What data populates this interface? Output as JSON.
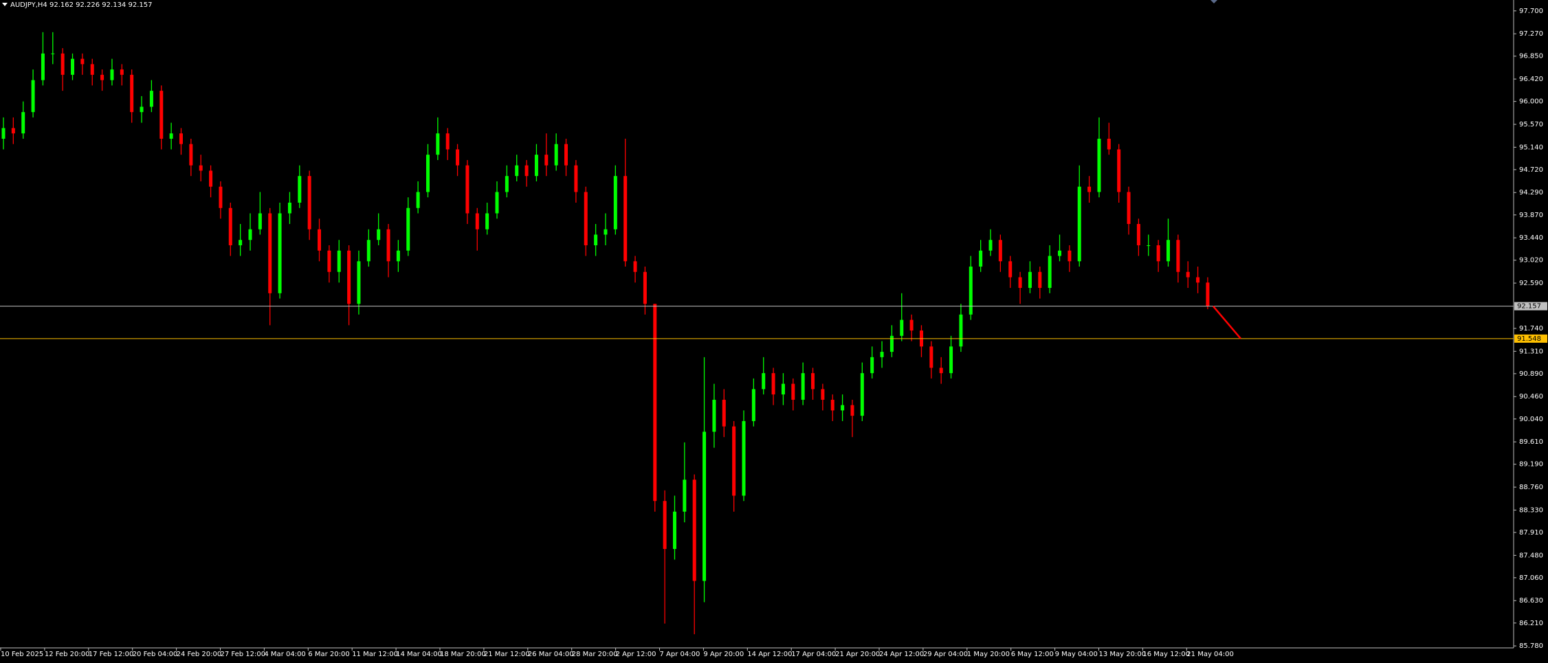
{
  "chart_data": {
    "type": "candlestick",
    "title": "AUDJPY,H4  92.162 92.226 92.134 92.157",
    "up_color": "#00ff00",
    "down_color": "#ff0000",
    "ylim": [
      85.743,
      97.904
    ],
    "yticks": [
      {
        "value": 97.7,
        "label": "97.700"
      },
      {
        "value": 97.27,
        "label": "97.270"
      },
      {
        "value": 96.85,
        "label": "96.850"
      },
      {
        "value": 96.42,
        "label": "96.420"
      },
      {
        "value": 96.0,
        "label": "96.000"
      },
      {
        "value": 95.57,
        "label": "95.570"
      },
      {
        "value": 95.14,
        "label": "95.140"
      },
      {
        "value": 94.72,
        "label": "94.720"
      },
      {
        "value": 94.29,
        "label": "94.290"
      },
      {
        "value": 93.87,
        "label": "93.870"
      },
      {
        "value": 93.44,
        "label": "93.440"
      },
      {
        "value": 93.02,
        "label": "93.020"
      },
      {
        "value": 92.59,
        "label": "92.590"
      },
      {
        "value": 91.74,
        "label": "91.740"
      },
      {
        "value": 91.31,
        "label": "91.310"
      },
      {
        "value": 90.89,
        "label": "90.890"
      },
      {
        "value": 90.46,
        "label": "90.460"
      },
      {
        "value": 90.04,
        "label": "90.040"
      },
      {
        "value": 89.61,
        "label": "89.610"
      },
      {
        "value": 89.19,
        "label": "89.190"
      },
      {
        "value": 88.76,
        "label": "88.760"
      },
      {
        "value": 88.33,
        "label": "88.330"
      },
      {
        "value": 87.91,
        "label": "87.910"
      },
      {
        "value": 87.48,
        "label": "87.480"
      },
      {
        "value": 87.06,
        "label": "87.060"
      },
      {
        "value": 86.63,
        "label": "86.630"
      },
      {
        "value": 86.21,
        "label": "86.210"
      },
      {
        "value": 85.78,
        "label": "85.780"
      }
    ],
    "hlines": [
      {
        "value": 92.157,
        "color": "#c0c0c0"
      },
      {
        "value": 91.548,
        "color": "#ffc000"
      }
    ],
    "categories": [
      "10 Feb 2025",
      "12 Feb 20:00",
      "17 Feb 12:00",
      "20 Feb 04:00",
      "24 Feb 20:00",
      "27 Feb 12:00",
      "4 Mar 04:00",
      "6 Mar 20:00",
      "11 Mar 12:00",
      "14 Mar 04:00",
      "18 Mar 20:00",
      "21 Mar 12:00",
      "26 Mar 04:00",
      "28 Mar 20:00",
      "2 Apr 12:00",
      "7 Apr 04:00",
      "9 Apr 20:00",
      "14 Apr 12:00",
      "17 Apr 04:00",
      "21 Apr 20:00",
      "24 Apr 12:00",
      "29 Apr 04:00",
      "1 May 20:00",
      "6 May 12:00",
      "9 May 04:00",
      "13 May 20:00",
      "16 May 12:00",
      "21 May 04:00"
    ],
    "candles": [
      [
        95.3,
        95.7,
        95.1,
        95.5
      ],
      [
        95.5,
        95.7,
        95.2,
        95.4
      ],
      [
        95.4,
        96.0,
        95.3,
        95.8
      ],
      [
        95.8,
        96.6,
        95.7,
        96.4
      ],
      [
        96.4,
        97.3,
        96.3,
        96.9
      ],
      [
        96.9,
        97.3,
        96.7,
        96.9
      ],
      [
        96.9,
        97.0,
        96.2,
        96.5
      ],
      [
        96.5,
        96.9,
        96.4,
        96.8
      ],
      [
        96.8,
        96.9,
        96.5,
        96.7
      ],
      [
        96.7,
        96.8,
        96.3,
        96.5
      ],
      [
        96.5,
        96.6,
        96.2,
        96.4
      ],
      [
        96.4,
        96.8,
        96.3,
        96.6
      ],
      [
        96.6,
        96.7,
        96.3,
        96.5
      ],
      [
        96.5,
        96.6,
        95.6,
        95.8
      ],
      [
        95.8,
        96.1,
        95.6,
        95.9
      ],
      [
        95.9,
        96.4,
        95.8,
        96.2
      ],
      [
        96.2,
        96.3,
        95.1,
        95.3
      ],
      [
        95.3,
        95.6,
        95.1,
        95.4
      ],
      [
        95.4,
        95.5,
        95.0,
        95.2
      ],
      [
        95.2,
        95.3,
        94.6,
        94.8
      ],
      [
        94.8,
        95.0,
        94.5,
        94.7
      ],
      [
        94.7,
        94.8,
        94.2,
        94.4
      ],
      [
        94.4,
        94.5,
        93.8,
        94.0
      ],
      [
        94.0,
        94.1,
        93.1,
        93.3
      ],
      [
        93.3,
        93.7,
        93.1,
        93.4
      ],
      [
        93.4,
        93.9,
        93.2,
        93.6
      ],
      [
        93.6,
        94.3,
        93.5,
        93.9
      ],
      [
        93.9,
        94.0,
        91.8,
        92.4
      ],
      [
        92.4,
        94.1,
        92.3,
        93.9
      ],
      [
        93.9,
        94.3,
        93.7,
        94.1
      ],
      [
        94.1,
        94.8,
        94.0,
        94.6
      ],
      [
        94.6,
        94.7,
        93.4,
        93.6
      ],
      [
        93.6,
        93.8,
        93.0,
        93.2
      ],
      [
        93.2,
        93.3,
        92.6,
        92.8
      ],
      [
        92.8,
        93.4,
        92.6,
        93.2
      ],
      [
        93.2,
        93.3,
        91.8,
        92.2
      ],
      [
        92.2,
        93.2,
        92.0,
        93.0
      ],
      [
        93.0,
        93.6,
        92.9,
        93.4
      ],
      [
        93.4,
        93.9,
        93.3,
        93.6
      ],
      [
        93.6,
        93.7,
        92.7,
        93.0
      ],
      [
        93.0,
        93.4,
        92.8,
        93.2
      ],
      [
        93.2,
        94.2,
        93.1,
        94.0
      ],
      [
        94.0,
        94.5,
        93.9,
        94.3
      ],
      [
        94.3,
        95.2,
        94.2,
        95.0
      ],
      [
        95.0,
        95.7,
        94.9,
        95.4
      ],
      [
        95.4,
        95.5,
        94.9,
        95.1
      ],
      [
        95.1,
        95.2,
        94.6,
        94.8
      ],
      [
        94.8,
        94.9,
        93.7,
        93.9
      ],
      [
        93.9,
        94.0,
        93.2,
        93.6
      ],
      [
        93.6,
        94.1,
        93.5,
        93.9
      ],
      [
        93.9,
        94.5,
        93.8,
        94.3
      ],
      [
        94.3,
        94.8,
        94.2,
        94.6
      ],
      [
        94.6,
        95.0,
        94.5,
        94.8
      ],
      [
        94.8,
        94.9,
        94.4,
        94.6
      ],
      [
        94.6,
        95.2,
        94.5,
        95.0
      ],
      [
        95.0,
        95.4,
        94.6,
        94.8
      ],
      [
        94.8,
        95.4,
        94.7,
        95.2
      ],
      [
        95.2,
        95.3,
        94.6,
        94.8
      ],
      [
        94.8,
        94.9,
        94.1,
        94.3
      ],
      [
        94.3,
        94.4,
        93.1,
        93.3
      ],
      [
        93.3,
        93.7,
        93.1,
        93.5
      ],
      [
        93.5,
        93.9,
        93.3,
        93.6
      ],
      [
        93.6,
        94.8,
        93.5,
        94.6
      ],
      [
        94.6,
        95.3,
        92.9,
        93.0
      ],
      [
        93.0,
        93.1,
        92.6,
        92.8
      ],
      [
        92.8,
        92.9,
        92.0,
        92.2
      ],
      [
        92.2,
        92.2,
        88.3,
        88.5
      ],
      [
        88.5,
        88.7,
        86.2,
        87.6
      ],
      [
        87.6,
        88.6,
        87.4,
        88.3
      ],
      [
        88.3,
        89.6,
        88.1,
        88.9
      ],
      [
        88.9,
        89.0,
        86.0,
        87.0
      ],
      [
        87.0,
        91.2,
        86.6,
        89.8
      ],
      [
        89.8,
        90.7,
        89.5,
        90.4
      ],
      [
        90.4,
        90.6,
        89.7,
        89.9
      ],
      [
        89.9,
        90.0,
        88.3,
        88.6
      ],
      [
        88.6,
        90.2,
        88.5,
        90.0
      ],
      [
        90.0,
        90.8,
        89.9,
        90.6
      ],
      [
        90.6,
        91.2,
        90.5,
        90.9
      ],
      [
        90.9,
        91.0,
        90.3,
        90.5
      ],
      [
        90.5,
        90.9,
        90.3,
        90.7
      ],
      [
        90.7,
        90.8,
        90.2,
        90.4
      ],
      [
        90.4,
        91.1,
        90.3,
        90.9
      ],
      [
        90.9,
        91.0,
        90.4,
        90.6
      ],
      [
        90.6,
        90.7,
        90.2,
        90.4
      ],
      [
        90.4,
        90.5,
        90.0,
        90.2
      ],
      [
        90.2,
        90.5,
        90.0,
        90.3
      ],
      [
        90.3,
        90.4,
        89.7,
        90.1
      ],
      [
        90.1,
        91.1,
        90.0,
        90.9
      ],
      [
        90.9,
        91.4,
        90.8,
        91.2
      ],
      [
        91.2,
        91.5,
        91.0,
        91.3
      ],
      [
        91.3,
        91.8,
        91.2,
        91.6
      ],
      [
        91.6,
        92.4,
        91.5,
        91.9
      ],
      [
        91.9,
        92.0,
        91.5,
        91.7
      ],
      [
        91.7,
        91.8,
        91.2,
        91.4
      ],
      [
        91.4,
        91.5,
        90.8,
        91.0
      ],
      [
        91.0,
        91.2,
        90.7,
        90.9
      ],
      [
        90.9,
        91.6,
        90.8,
        91.4
      ],
      [
        91.4,
        92.2,
        91.3,
        92.0
      ],
      [
        92.0,
        93.1,
        91.9,
        92.9
      ],
      [
        92.9,
        93.4,
        92.8,
        93.2
      ],
      [
        93.2,
        93.6,
        93.1,
        93.4
      ],
      [
        93.4,
        93.5,
        92.8,
        93.0
      ],
      [
        93.0,
        93.1,
        92.5,
        92.7
      ],
      [
        92.7,
        92.8,
        92.2,
        92.5
      ],
      [
        92.5,
        93.0,
        92.4,
        92.8
      ],
      [
        92.8,
        92.9,
        92.3,
        92.5
      ],
      [
        92.5,
        93.3,
        92.4,
        93.1
      ],
      [
        93.1,
        93.5,
        93.0,
        93.2
      ],
      [
        93.2,
        93.3,
        92.8,
        93.0
      ],
      [
        93.0,
        94.8,
        92.9,
        94.4
      ],
      [
        94.4,
        94.6,
        94.1,
        94.3
      ],
      [
        94.3,
        95.7,
        94.2,
        95.3
      ],
      [
        95.3,
        95.6,
        95.0,
        95.1
      ],
      [
        95.1,
        95.2,
        94.1,
        94.3
      ],
      [
        94.3,
        94.4,
        93.5,
        93.7
      ],
      [
        93.7,
        93.8,
        93.1,
        93.3
      ],
      [
        93.3,
        93.5,
        93.1,
        93.3
      ],
      [
        93.3,
        93.4,
        92.8,
        93.0
      ],
      [
        93.0,
        93.8,
        92.9,
        93.4
      ],
      [
        93.4,
        93.5,
        92.6,
        92.8
      ],
      [
        92.8,
        93.0,
        92.5,
        92.7
      ],
      [
        92.7,
        92.9,
        92.4,
        92.6
      ],
      [
        92.6,
        92.7,
        92.1,
        92.157
      ]
    ]
  }
}
